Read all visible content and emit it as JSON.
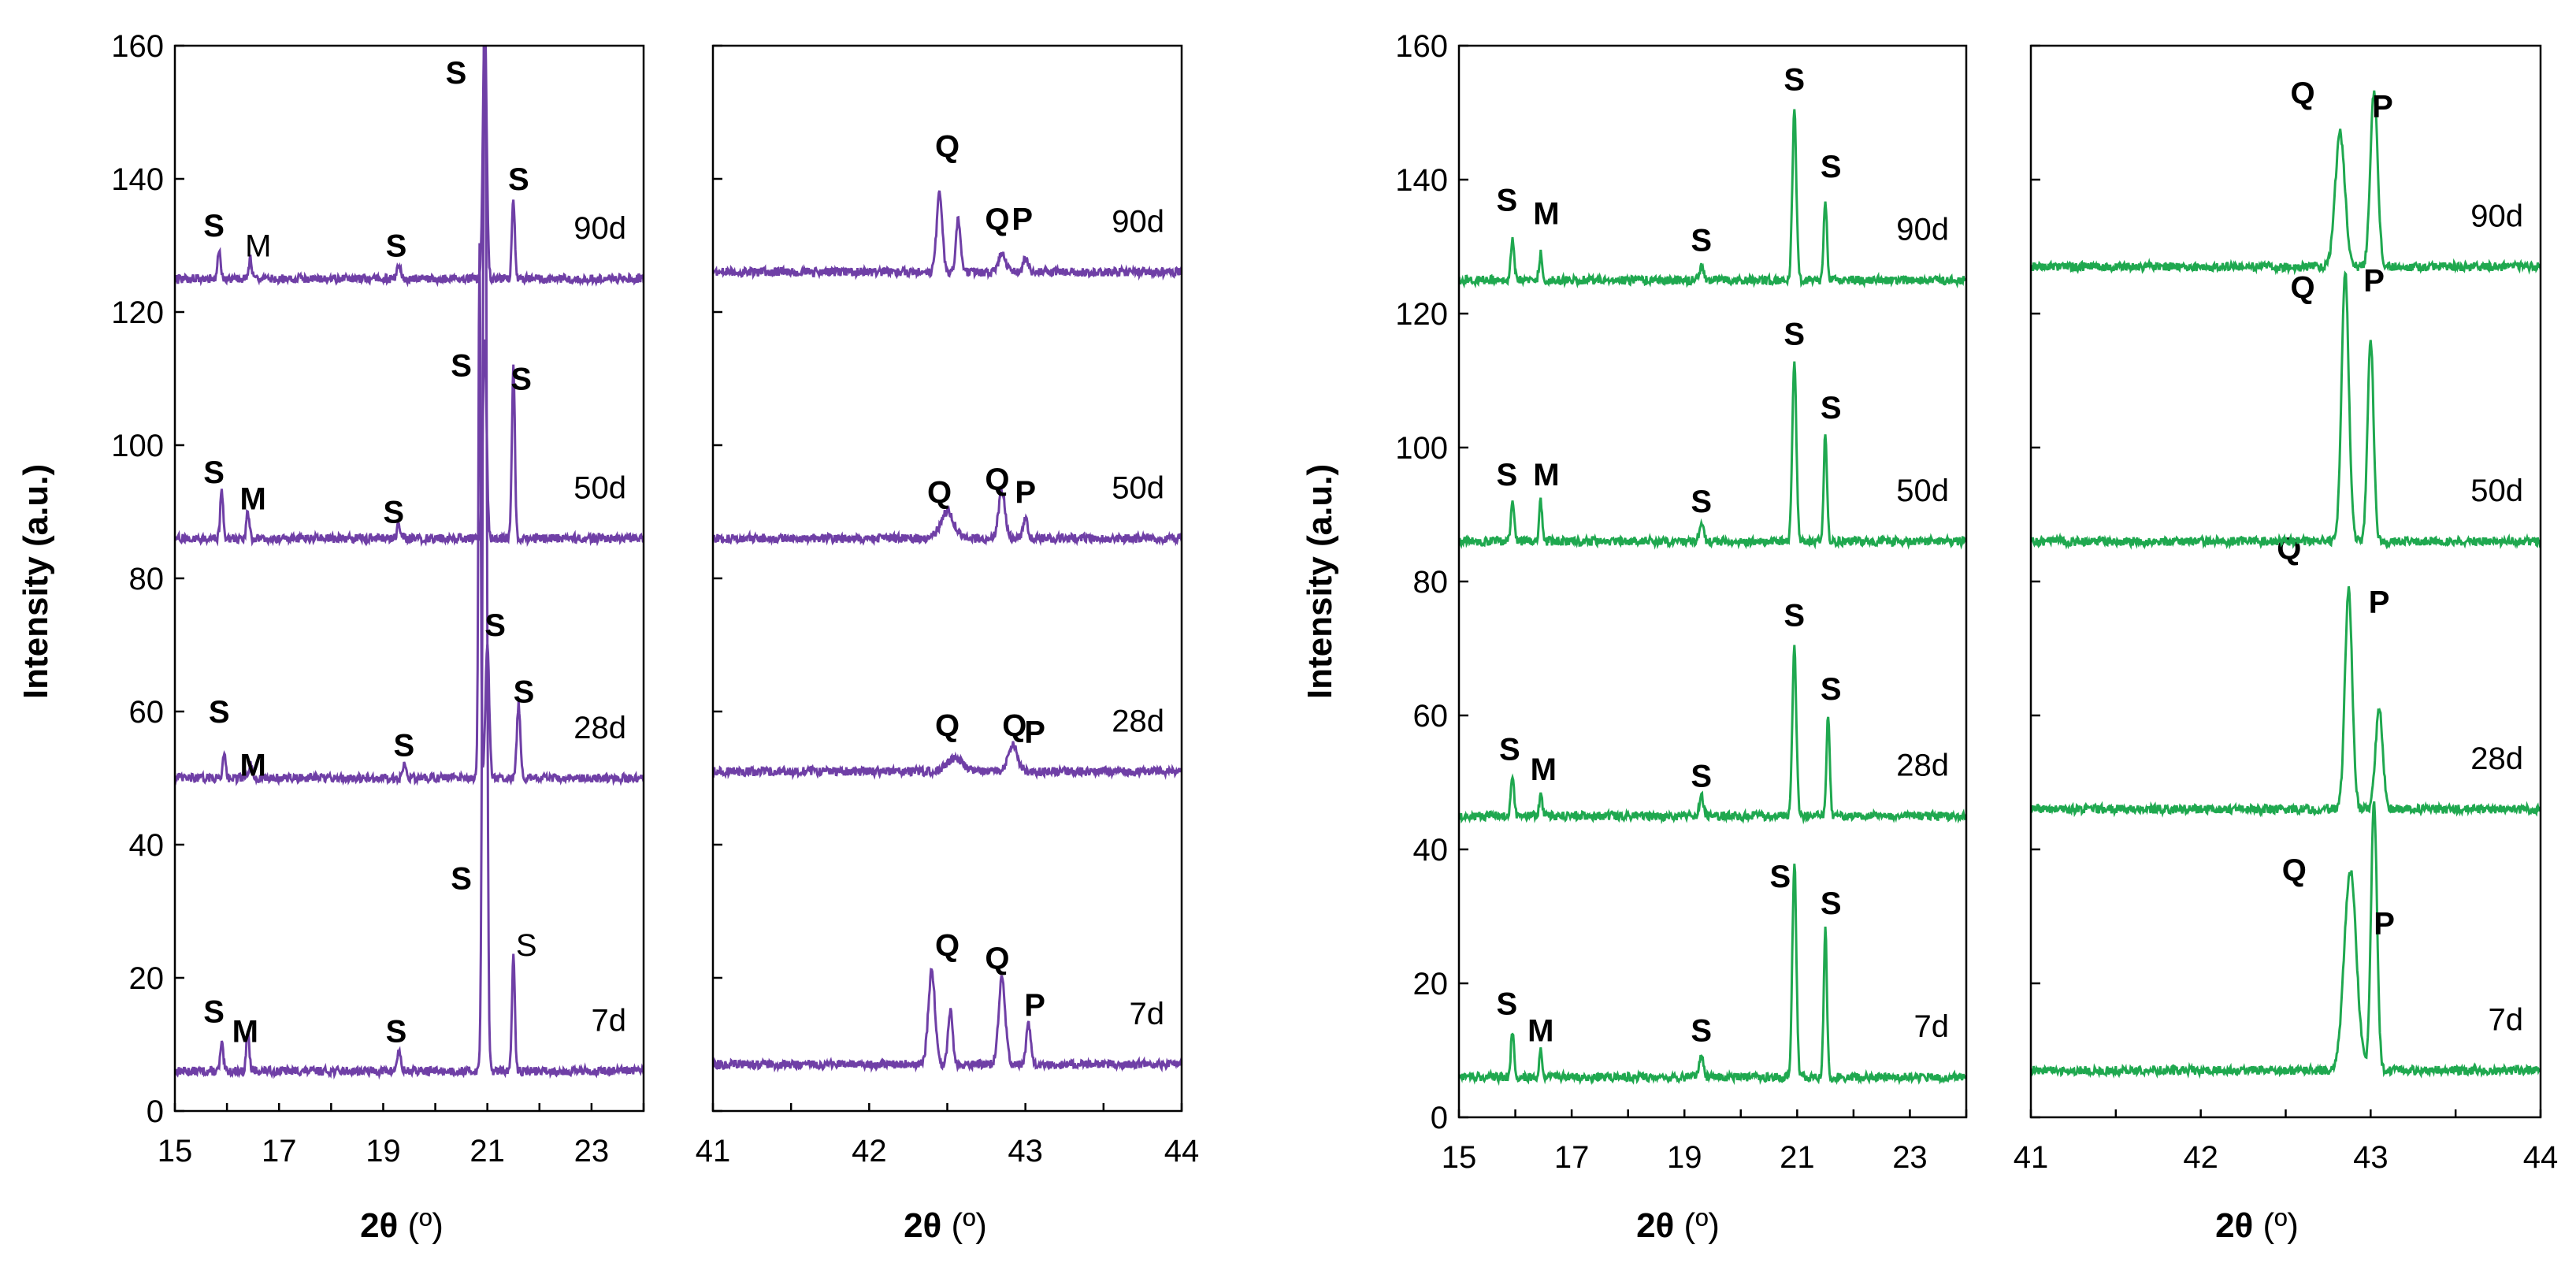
{
  "figure": {
    "ylabel": "Intensity (a.u.)",
    "xlabel_main": "2θ",
    "xlabel_unit": " (º)"
  },
  "chart_data": [
    {
      "type": "line",
      "panel": "left-low-angle",
      "color": "#6f3fa6",
      "x": [
        15,
        24
      ],
      "ylim": [
        0,
        160
      ],
      "xticks": [
        15,
        17,
        19,
        21,
        23
      ],
      "yticks": [
        0,
        20,
        40,
        60,
        80,
        100,
        120,
        140,
        160
      ],
      "show_yticks": true,
      "curves": [
        {
          "label": "7d",
          "base": 6,
          "peaks": [
            [
              15.9,
              4,
              0.04
            ],
            [
              16.4,
              6,
              0.04
            ],
            [
              19.3,
              3,
              0.05
            ],
            [
              20.95,
              175,
              0.05
            ],
            [
              21.5,
              17,
              0.04
            ]
          ],
          "peak_labels": [
            {
              "t": "S",
              "x": 15.75,
              "y": 15,
              "b": true
            },
            {
              "t": "M",
              "x": 16.35,
              "y": 12,
              "b": true
            },
            {
              "t": "S",
              "x": 19.25,
              "y": 12,
              "b": true
            },
            {
              "t": "S",
              "x": 20.5,
              "y": 35,
              "b": true
            },
            {
              "t": "S",
              "x": 21.75,
              "y": 25,
              "b": false
            }
          ]
        },
        {
          "label": "28d",
          "base": 50,
          "peaks": [
            [
              15.95,
              4,
              0.04
            ],
            [
              16.45,
              2,
              0.04
            ],
            [
              19.4,
              2,
              0.05
            ],
            [
              20.85,
              80,
              0.03
            ],
            [
              21.0,
              20,
              0.05
            ],
            [
              21.6,
              11,
              0.05
            ]
          ],
          "peak_labels": [
            {
              "t": "S",
              "x": 15.85,
              "y": 60,
              "b": true
            },
            {
              "t": "M",
              "x": 16.5,
              "y": 52,
              "b": true
            },
            {
              "t": "S",
              "x": 19.4,
              "y": 55,
              "b": true
            },
            {
              "t": "S",
              "x": 21.15,
              "y": 73,
              "b": true
            },
            {
              "t": "S",
              "x": 21.7,
              "y": 63,
              "b": true
            }
          ]
        },
        {
          "label": "50d",
          "base": 86,
          "peaks": [
            [
              15.9,
              7,
              0.04
            ],
            [
              16.4,
              4,
              0.04
            ],
            [
              19.3,
              2,
              0.05
            ],
            [
              20.95,
              30,
              0.05
            ],
            [
              21.5,
              26,
              0.04
            ]
          ],
          "peak_labels": [
            {
              "t": "S",
              "x": 15.75,
              "y": 96,
              "b": true
            },
            {
              "t": "M",
              "x": 16.5,
              "y": 92,
              "b": true
            },
            {
              "t": "S",
              "x": 19.2,
              "y": 90,
              "b": true
            },
            {
              "t": "S",
              "x": 20.5,
              "y": 112,
              "b": true
            },
            {
              "t": "S",
              "x": 21.65,
              "y": 110,
              "b": true
            }
          ]
        },
        {
          "label": "90d",
          "base": 125,
          "peaks": [
            [
              15.85,
              4,
              0.04
            ],
            [
              16.45,
              3,
              0.04
            ],
            [
              19.3,
              2,
              0.05
            ],
            [
              20.95,
              40,
              0.05
            ],
            [
              21.5,
              12,
              0.04
            ]
          ],
          "peak_labels": [
            {
              "t": "S",
              "x": 15.75,
              "y": 133,
              "b": true
            },
            {
              "t": "M",
              "x": 16.6,
              "y": 130,
              "b": false
            },
            {
              "t": "S",
              "x": 19.25,
              "y": 130,
              "b": true
            },
            {
              "t": "S",
              "x": 20.4,
              "y": 156,
              "b": true
            },
            {
              "t": "S",
              "x": 21.6,
              "y": 140,
              "b": true
            }
          ]
        }
      ]
    },
    {
      "type": "line",
      "panel": "left-high-angle",
      "color": "#6f3fa6",
      "x": [
        41,
        44
      ],
      "ylim": [
        0,
        160
      ],
      "xticks": [
        41,
        42,
        43,
        44
      ],
      "yticks": [
        0,
        20,
        40,
        60,
        80,
        100,
        120,
        140,
        160
      ],
      "show_yticks": false,
      "curves": [
        {
          "label": "7d",
          "base": 7,
          "peaks": [
            [
              42.4,
              14,
              0.03
            ],
            [
              42.52,
              8,
              0.02
            ],
            [
              42.85,
              13,
              0.03
            ],
            [
              43.02,
              6,
              0.02
            ]
          ],
          "peak_labels": [
            {
              "t": "Q",
              "x": 42.5,
              "y": 25,
              "b": true
            },
            {
              "t": "Q",
              "x": 42.82,
              "y": 23,
              "b": true
            },
            {
              "t": "P",
              "x": 43.06,
              "y": 16,
              "b": true
            }
          ]
        },
        {
          "label": "28d",
          "base": 51,
          "peaks": [
            [
              42.55,
              2,
              0.07
            ],
            [
              42.92,
              4,
              0.04
            ]
          ],
          "peak_labels": [
            {
              "t": "Q",
              "x": 42.5,
              "y": 58,
              "b": true
            },
            {
              "t": "Q",
              "x": 42.93,
              "y": 58,
              "b": true
            },
            {
              "t": "P",
              "x": 43.06,
              "y": 57,
              "b": true
            }
          ]
        },
        {
          "label": "50d",
          "base": 86,
          "peaks": [
            [
              42.5,
              4,
              0.06
            ],
            [
              42.85,
              7,
              0.03
            ],
            [
              43.0,
              3,
              0.02
            ]
          ],
          "peak_labels": [
            {
              "t": "Q",
              "x": 42.45,
              "y": 93,
              "b": true
            },
            {
              "t": "Q",
              "x": 42.82,
              "y": 95,
              "b": true
            },
            {
              "t": "P",
              "x": 43.0,
              "y": 93,
              "b": true
            }
          ]
        },
        {
          "label": "90d",
          "base": 126,
          "peaks": [
            [
              42.45,
              12,
              0.025
            ],
            [
              42.57,
              8,
              0.02
            ],
            [
              42.85,
              3,
              0.03
            ],
            [
              43.0,
              2,
              0.02
            ]
          ],
          "peak_labels": [
            {
              "t": "Q",
              "x": 42.5,
              "y": 145,
              "b": true
            },
            {
              "t": "Q",
              "x": 42.82,
              "y": 134,
              "b": true
            },
            {
              "t": "P",
              "x": 42.98,
              "y": 134,
              "b": true
            }
          ]
        }
      ]
    },
    {
      "type": "line",
      "panel": "right-low-angle",
      "color": "#1fa84f",
      "x": [
        15,
        24
      ],
      "ylim": [
        0,
        160
      ],
      "xticks": [
        15,
        17,
        19,
        21,
        23
      ],
      "yticks": [
        0,
        20,
        40,
        60,
        80,
        100,
        120,
        140,
        160
      ],
      "show_yticks": true,
      "curves": [
        {
          "label": "7d",
          "base": 6,
          "peaks": [
            [
              15.95,
              7,
              0.04
            ],
            [
              16.45,
              4,
              0.04
            ],
            [
              19.3,
              3,
              0.05
            ],
            [
              20.95,
              32,
              0.05
            ],
            [
              21.5,
              22,
              0.04
            ]
          ],
          "peak_labels": [
            {
              "t": "S",
              "x": 15.85,
              "y": 17,
              "b": true
            },
            {
              "t": "M",
              "x": 16.45,
              "y": 13,
              "b": true
            },
            {
              "t": "S",
              "x": 19.3,
              "y": 13,
              "b": true
            },
            {
              "t": "S",
              "x": 20.7,
              "y": 36,
              "b": true
            },
            {
              "t": "S",
              "x": 21.6,
              "y": 32,
              "b": true
            }
          ]
        },
        {
          "label": "28d",
          "base": 45,
          "peaks": [
            [
              15.95,
              6,
              0.04
            ],
            [
              16.45,
              3,
              0.04
            ],
            [
              19.3,
              3,
              0.05
            ],
            [
              20.95,
              25,
              0.05
            ],
            [
              21.55,
              15,
              0.04
            ]
          ],
          "peak_labels": [
            {
              "t": "S",
              "x": 15.9,
              "y": 55,
              "b": true
            },
            {
              "t": "M",
              "x": 16.5,
              "y": 52,
              "b": true
            },
            {
              "t": "S",
              "x": 19.3,
              "y": 51,
              "b": true
            },
            {
              "t": "S",
              "x": 20.95,
              "y": 75,
              "b": true
            },
            {
              "t": "S",
              "x": 21.6,
              "y": 64,
              "b": true
            }
          ]
        },
        {
          "label": "50d",
          "base": 86,
          "peaks": [
            [
              15.95,
              6,
              0.04
            ],
            [
              16.45,
              6,
              0.04
            ],
            [
              19.3,
              3,
              0.05
            ],
            [
              20.95,
              27,
              0.05
            ],
            [
              21.5,
              16,
              0.04
            ]
          ],
          "peak_labels": [
            {
              "t": "S",
              "x": 15.85,
              "y": 96,
              "b": true
            },
            {
              "t": "M",
              "x": 16.55,
              "y": 96,
              "b": true
            },
            {
              "t": "S",
              "x": 19.3,
              "y": 92,
              "b": true
            },
            {
              "t": "S",
              "x": 20.95,
              "y": 117,
              "b": true
            },
            {
              "t": "S",
              "x": 21.6,
              "y": 106,
              "b": true
            }
          ]
        },
        {
          "label": "90d",
          "base": 125,
          "peaks": [
            [
              15.95,
              6,
              0.04
            ],
            [
              16.45,
              4,
              0.04
            ],
            [
              19.3,
              2,
              0.05
            ],
            [
              20.95,
              25,
              0.05
            ],
            [
              21.5,
              12,
              0.04
            ]
          ],
          "peak_labels": [
            {
              "t": "S",
              "x": 15.85,
              "y": 137,
              "b": true
            },
            {
              "t": "M",
              "x": 16.55,
              "y": 135,
              "b": true
            },
            {
              "t": "S",
              "x": 19.3,
              "y": 131,
              "b": true
            },
            {
              "t": "S",
              "x": 20.95,
              "y": 155,
              "b": true
            },
            {
              "t": "S",
              "x": 21.6,
              "y": 142,
              "b": true
            }
          ]
        }
      ]
    },
    {
      "type": "line",
      "panel": "right-high-angle",
      "color": "#1fa84f",
      "x": [
        41,
        44
      ],
      "ylim": [
        0,
        160
      ],
      "xticks": [
        41,
        42,
        43,
        44
      ],
      "yticks": [
        0,
        20,
        40,
        60,
        80,
        100,
        120,
        140,
        160
      ],
      "show_yticks": false,
      "curves": [
        {
          "label": "7d",
          "base": 7,
          "peaks": [
            [
              42.88,
              30,
              0.05
            ],
            [
              43.02,
              40,
              0.025
            ]
          ],
          "peak_labels": [
            {
              "t": "Q",
              "x": 42.55,
              "y": 37,
              "b": true
            },
            {
              "t": "P",
              "x": 43.08,
              "y": 29,
              "b": true
            }
          ]
        },
        {
          "label": "28d",
          "base": 46,
          "peaks": [
            [
              42.87,
              33,
              0.03
            ],
            [
              43.05,
              15,
              0.03
            ]
          ],
          "peak_labels": [
            {
              "t": "Q",
              "x": 42.52,
              "y": 85,
              "b": true
            },
            {
              "t": "P",
              "x": 43.05,
              "y": 77,
              "b": true
            }
          ]
        },
        {
          "label": "50d",
          "base": 86,
          "peaks": [
            [
              42.85,
              40,
              0.03
            ],
            [
              43.0,
              30,
              0.025
            ]
          ],
          "peak_labels": [
            {
              "t": "Q",
              "x": 42.6,
              "y": 124,
              "b": true
            },
            {
              "t": "P",
              "x": 43.02,
              "y": 125,
              "b": true
            }
          ]
        },
        {
          "label": "90d",
          "base": 127,
          "peaks": [
            [
              42.82,
              20,
              0.04
            ],
            [
              43.02,
              26,
              0.03
            ]
          ],
          "peak_labels": [
            {
              "t": "Q",
              "x": 42.6,
              "y": 153,
              "b": true
            },
            {
              "t": "P",
              "x": 43.07,
              "y": 151,
              "b": true
            }
          ]
        }
      ]
    }
  ]
}
